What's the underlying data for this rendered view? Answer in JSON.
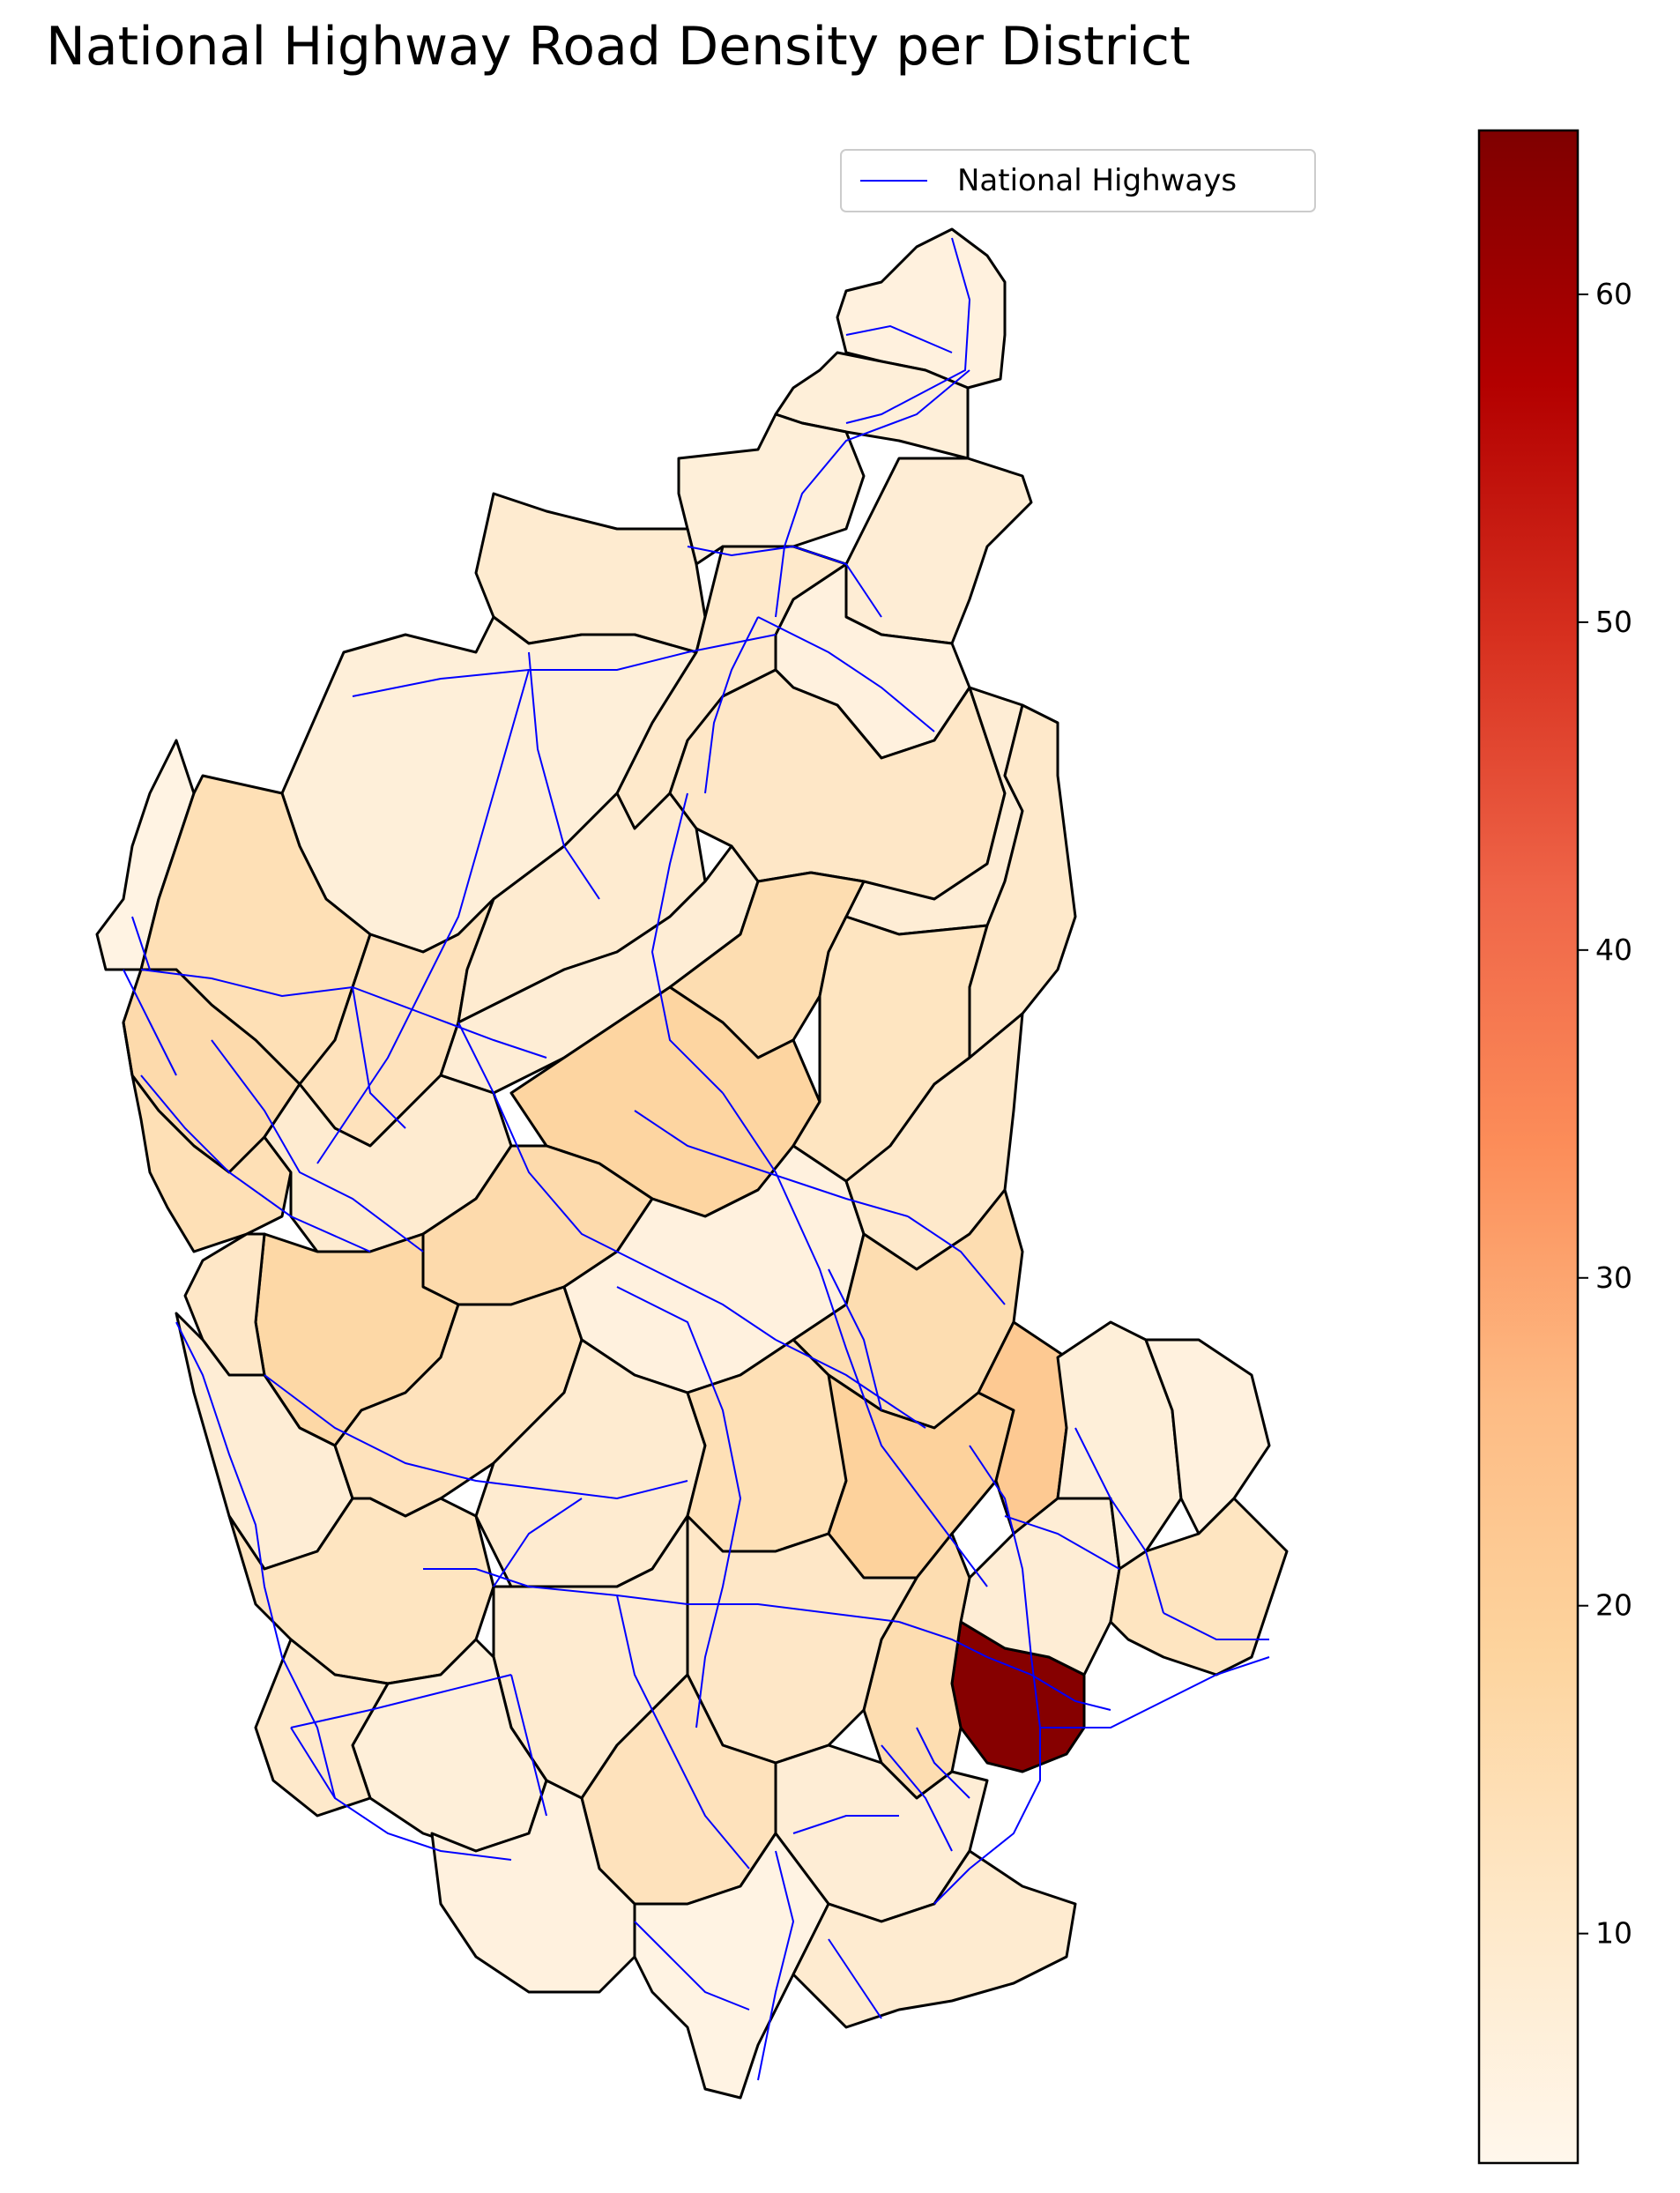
{
  "title": "National Highway Road Density per District",
  "legend": {
    "label": "National Highways",
    "color": "#0000ff"
  },
  "colormap": {
    "name": "OrRd-like",
    "stops": [
      "#fff7ec",
      "#fee8c8",
      "#fdd49e",
      "#fdbb84",
      "#fc8d59",
      "#ef6548",
      "#d7301f",
      "#b30000",
      "#7f0000"
    ],
    "min": 3.0,
    "max": 65.0,
    "ticks": [
      10,
      20,
      30,
      40,
      50,
      60
    ]
  },
  "map": {
    "region": "Karnataka",
    "district_border_color": "#000000",
    "highway_color": "#0000ff",
    "district_densities": [
      6,
      7,
      8,
      7,
      6,
      9,
      10,
      11,
      8,
      7,
      5,
      14,
      16,
      13,
      9,
      8,
      15,
      18,
      12,
      10,
      14,
      9,
      16,
      17,
      11,
      8,
      13,
      6,
      10,
      15,
      12,
      9,
      14,
      19,
      22,
      64,
      8,
      7,
      6,
      12,
      15,
      11,
      9,
      7,
      10,
      13,
      8,
      6,
      5,
      9
    ]
  }
}
